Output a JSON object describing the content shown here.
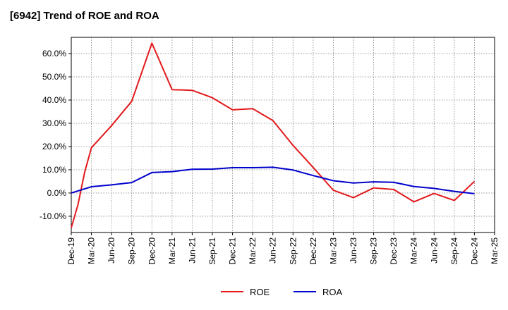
{
  "chart_data": {
    "type": "line",
    "title": "[6942]  Trend of ROE and ROA",
    "xlabel": "",
    "ylabel": "",
    "x": [
      "Dec-19",
      "Mar-20",
      "Jun-20",
      "Sep-20",
      "Dec-20",
      "Mar-21",
      "Jun-21",
      "Sep-21",
      "Dec-21",
      "Mar-22",
      "Jun-22",
      "Sep-22",
      "Dec-22",
      "Mar-23",
      "Jun-23",
      "Sep-23",
      "Dec-23",
      "Mar-24",
      "Jun-24",
      "Sep-24",
      "Dec-24",
      "Mar-25"
    ],
    "x_ticks": [
      "Dec-19",
      "Mar-20",
      "Jun-20",
      "Sep-20",
      "Dec-20",
      "Mar-21",
      "Jun-21",
      "Sep-21",
      "Dec-21",
      "Mar-22",
      "Jun-22",
      "Sep-22",
      "Dec-22",
      "Mar-23",
      "Jun-23",
      "Sep-23",
      "Dec-23",
      "Mar-24",
      "Jun-24",
      "Sep-24",
      "Dec-24",
      "Mar-25"
    ],
    "ylim": [
      -17,
      67
    ],
    "y_ticks": [
      -10,
      0,
      10,
      20,
      30,
      40,
      50,
      60
    ],
    "y_tick_labels": [
      "-10.0%",
      "0.0%",
      "10.0%",
      "20.0%",
      "30.0%",
      "40.0%",
      "50.0%",
      "60.0%"
    ],
    "grid": true,
    "legend_position": "bottom-center",
    "series": [
      {
        "name": "ROE",
        "color": "#e31a1c",
        "points": [
          [
            "Dec-19",
            -15.0
          ],
          [
            "Jan-20",
            -5.0
          ],
          [
            "Feb-20",
            9.0
          ],
          [
            "Mar-20",
            19.5
          ],
          [
            "Jun-20",
            29.0
          ],
          [
            "Sep-20",
            39.5
          ],
          [
            "Dec-20",
            64.5
          ],
          [
            "Mar-21",
            44.5
          ],
          [
            "Jun-21",
            44.2
          ],
          [
            "Sep-21",
            41.0
          ],
          [
            "Dec-21",
            35.8
          ],
          [
            "Mar-22",
            36.3
          ],
          [
            "Jun-22",
            31.2
          ],
          [
            "Sep-22",
            20.5
          ],
          [
            "Dec-22",
            11.0
          ],
          [
            "Mar-23",
            1.2
          ],
          [
            "Jun-23",
            -2.0
          ],
          [
            "Sep-23",
            2.2
          ],
          [
            "Dec-23",
            1.5
          ],
          [
            "Mar-24",
            -3.8
          ],
          [
            "Jun-24",
            -0.2
          ],
          [
            "Sep-24",
            -3.2
          ],
          [
            "Dec-24",
            5.0
          ]
        ]
      },
      {
        "name": "ROA",
        "color": "#0000cc",
        "points": [
          [
            "Dec-19",
            0.0
          ],
          [
            "Mar-20",
            2.7
          ],
          [
            "Jun-20",
            3.5
          ],
          [
            "Sep-20",
            4.5
          ],
          [
            "Dec-20",
            8.8
          ],
          [
            "Mar-21",
            9.2
          ],
          [
            "Jun-21",
            10.2
          ],
          [
            "Sep-21",
            10.3
          ],
          [
            "Dec-21",
            10.9
          ],
          [
            "Mar-22",
            10.9
          ],
          [
            "Jun-22",
            11.1
          ],
          [
            "Sep-22",
            9.9
          ],
          [
            "Dec-22",
            7.5
          ],
          [
            "Mar-23",
            5.3
          ],
          [
            "Jun-23",
            4.3
          ],
          [
            "Sep-23",
            4.8
          ],
          [
            "Dec-23",
            4.6
          ],
          [
            "Mar-24",
            2.8
          ],
          [
            "Jun-24",
            2.0
          ],
          [
            "Sep-24",
            0.7
          ],
          [
            "Dec-24",
            -0.3
          ]
        ]
      }
    ]
  }
}
